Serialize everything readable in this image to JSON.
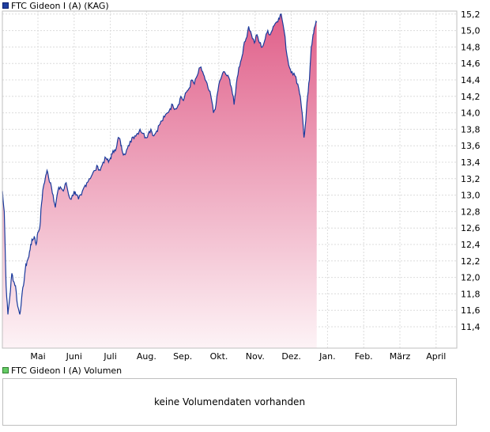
{
  "legend": {
    "price_label": "FTC Gideon I (A) (KAG)",
    "volume_label": "FTC Gideon I (A) Volumen",
    "price_color": "#1f3f9f",
    "volume_color": "#66cc66"
  },
  "volume_panel": {
    "message": "keine Volumendaten vorhanden"
  },
  "chart_data": {
    "type": "area",
    "series": [
      {
        "name": "FTC Gideon I (A) (KAG)",
        "line_color": "#1a3a9c",
        "fill_top": "#e0608a",
        "fill_bottom": "#fdf3f6"
      }
    ],
    "x_ticks": [
      "Mai",
      "Juni",
      "Juli",
      "Aug.",
      "Sep.",
      "Okt.",
      "Nov.",
      "Dez.",
      "Jan.",
      "Feb.",
      "März",
      "April"
    ],
    "y_ticks": [
      "11,4",
      "11,6",
      "11,8",
      "12,0",
      "12,2",
      "12,4",
      "12,6",
      "12,8",
      "13,0",
      "13,2",
      "13,4",
      "13,6",
      "13,8",
      "14,0",
      "14,2",
      "14,4",
      "14,6",
      "14,8",
      "15,0",
      "15,2"
    ],
    "ylim": [
      11.15,
      15.35
    ],
    "x_range_months": [
      -1.03,
      11.2
    ],
    "grid": true,
    "y_axis_side": "right",
    "points": [
      [
        -1.03,
        13.02
      ],
      [
        -0.98,
        13.05
      ],
      [
        -0.93,
        12.8
      ],
      [
        -0.88,
        11.9
      ],
      [
        -0.83,
        11.55
      ],
      [
        -0.78,
        11.75
      ],
      [
        -0.72,
        12.05
      ],
      [
        -0.67,
        11.95
      ],
      [
        -0.62,
        11.9
      ],
      [
        -0.56,
        11.65
      ],
      [
        -0.5,
        11.55
      ],
      [
        -0.45,
        11.75
      ],
      [
        -0.4,
        11.9
      ],
      [
        -0.35,
        12.1
      ],
      [
        -0.3,
        12.2
      ],
      [
        -0.25,
        12.25
      ],
      [
        -0.2,
        12.4
      ],
      [
        -0.15,
        12.45
      ],
      [
        -0.1,
        12.5
      ],
      [
        -0.05,
        12.4
      ],
      [
        0.0,
        12.55
      ],
      [
        0.05,
        12.6
      ],
      [
        0.1,
        12.9
      ],
      [
        0.15,
        13.1
      ],
      [
        0.2,
        13.2
      ],
      [
        0.25,
        13.3
      ],
      [
        0.3,
        13.2
      ],
      [
        0.35,
        13.15
      ],
      [
        0.42,
        13.0
      ],
      [
        0.48,
        12.85
      ],
      [
        0.55,
        13.05
      ],
      [
        0.62,
        13.1
      ],
      [
        0.7,
        13.05
      ],
      [
        0.78,
        13.15
      ],
      [
        0.85,
        13.0
      ],
      [
        0.92,
        12.95
      ],
      [
        1.0,
        13.05
      ],
      [
        1.05,
        13.0
      ],
      [
        1.12,
        12.95
      ],
      [
        1.2,
        13.0
      ],
      [
        1.28,
        13.1
      ],
      [
        1.35,
        13.15
      ],
      [
        1.42,
        13.2
      ],
      [
        1.5,
        13.25
      ],
      [
        1.58,
        13.3
      ],
      [
        1.65,
        13.35
      ],
      [
        1.72,
        13.3
      ],
      [
        1.8,
        13.4
      ],
      [
        1.88,
        13.45
      ],
      [
        1.95,
        13.4
      ],
      [
        2.0,
        13.45
      ],
      [
        2.05,
        13.5
      ],
      [
        2.12,
        13.55
      ],
      [
        2.18,
        13.6
      ],
      [
        2.22,
        13.7
      ],
      [
        2.28,
        13.65
      ],
      [
        2.32,
        13.55
      ],
      [
        2.38,
        13.5
      ],
      [
        2.45,
        13.55
      ],
      [
        2.52,
        13.6
      ],
      [
        2.6,
        13.7
      ],
      [
        2.68,
        13.72
      ],
      [
        2.75,
        13.75
      ],
      [
        2.82,
        13.8
      ],
      [
        2.9,
        13.75
      ],
      [
        2.98,
        13.7
      ],
      [
        3.05,
        13.75
      ],
      [
        3.12,
        13.8
      ],
      [
        3.2,
        13.72
      ],
      [
        3.28,
        13.78
      ],
      [
        3.35,
        13.85
      ],
      [
        3.42,
        13.9
      ],
      [
        3.5,
        13.95
      ],
      [
        3.58,
        14.0
      ],
      [
        3.65,
        14.05
      ],
      [
        3.72,
        14.1
      ],
      [
        3.8,
        14.05
      ],
      [
        3.88,
        14.1
      ],
      [
        3.95,
        14.2
      ],
      [
        4.02,
        14.15
      ],
      [
        4.1,
        14.25
      ],
      [
        4.18,
        14.3
      ],
      [
        4.25,
        14.4
      ],
      [
        4.32,
        14.35
      ],
      [
        4.4,
        14.45
      ],
      [
        4.48,
        14.55
      ],
      [
        4.55,
        14.5
      ],
      [
        4.62,
        14.4
      ],
      [
        4.7,
        14.3
      ],
      [
        4.78,
        14.2
      ],
      [
        4.85,
        14.0
      ],
      [
        4.92,
        14.1
      ],
      [
        5.0,
        14.35
      ],
      [
        5.08,
        14.45
      ],
      [
        5.15,
        14.5
      ],
      [
        5.22,
        14.45
      ],
      [
        5.3,
        14.4
      ],
      [
        5.35,
        14.3
      ],
      [
        5.42,
        14.1
      ],
      [
        5.48,
        14.35
      ],
      [
        5.55,
        14.55
      ],
      [
        5.62,
        14.65
      ],
      [
        5.68,
        14.8
      ],
      [
        5.75,
        14.9
      ],
      [
        5.82,
        15.05
      ],
      [
        5.9,
        14.95
      ],
      [
        5.98,
        14.85
      ],
      [
        6.05,
        14.95
      ],
      [
        6.12,
        14.85
      ],
      [
        6.2,
        14.8
      ],
      [
        6.28,
        14.9
      ],
      [
        6.35,
        15.0
      ],
      [
        6.42,
        14.95
      ],
      [
        6.5,
        15.05
      ],
      [
        6.58,
        15.1
      ],
      [
        6.65,
        15.15
      ],
      [
        6.72,
        15.2
      ],
      [
        6.8,
        15.0
      ],
      [
        6.88,
        14.7
      ],
      [
        6.95,
        14.55
      ],
      [
        7.02,
        14.5
      ],
      [
        7.1,
        14.45
      ],
      [
        7.18,
        14.35
      ],
      [
        7.25,
        14.2
      ],
      [
        7.3,
        14.0
      ],
      [
        7.35,
        13.7
      ],
      [
        7.4,
        13.9
      ],
      [
        7.45,
        14.2
      ],
      [
        7.5,
        14.4
      ],
      [
        7.55,
        14.8
      ],
      [
        7.6,
        14.95
      ],
      [
        7.65,
        15.05
      ],
      [
        7.7,
        15.1
      ]
    ]
  }
}
